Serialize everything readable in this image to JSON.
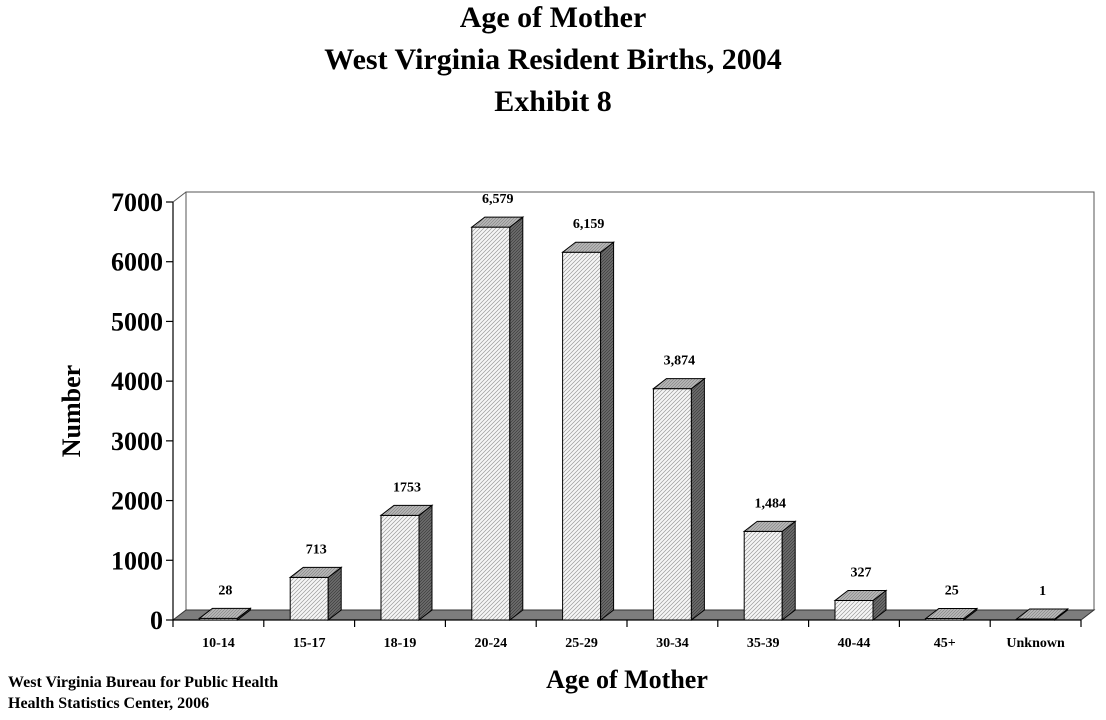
{
  "title_lines": [
    "Age of Mother",
    "West Virginia Resident Births, 2004",
    "Exhibit 8"
  ],
  "source_lines": [
    "West Virginia Bureau for Public Health",
    "Health Statistics Center, 2006"
  ],
  "chart_data": {
    "type": "bar",
    "title": "Age of Mother West Virginia Resident Births, 2004 Exhibit 8",
    "xlabel": "Age of Mother",
    "ylabel": "Number",
    "ylim": [
      0,
      7000
    ],
    "yticks": [
      "0",
      "1000",
      "2000",
      "3000",
      "4000",
      "5000",
      "6000",
      "7000"
    ],
    "categories": [
      "10-14",
      "15-17",
      "18-19",
      "20-24",
      "25-29",
      "30-34",
      "35-39",
      "40-44",
      "45+",
      "Unknown"
    ],
    "values": [
      28,
      713,
      1753,
      6579,
      6159,
      3874,
      1484,
      327,
      25,
      1
    ],
    "data_labels": [
      "28",
      "713",
      "1753",
      "6,579",
      "6,159",
      "3,874",
      "1,484",
      "327",
      "25",
      "1"
    ],
    "grid": false,
    "style": "3d-hatched"
  }
}
